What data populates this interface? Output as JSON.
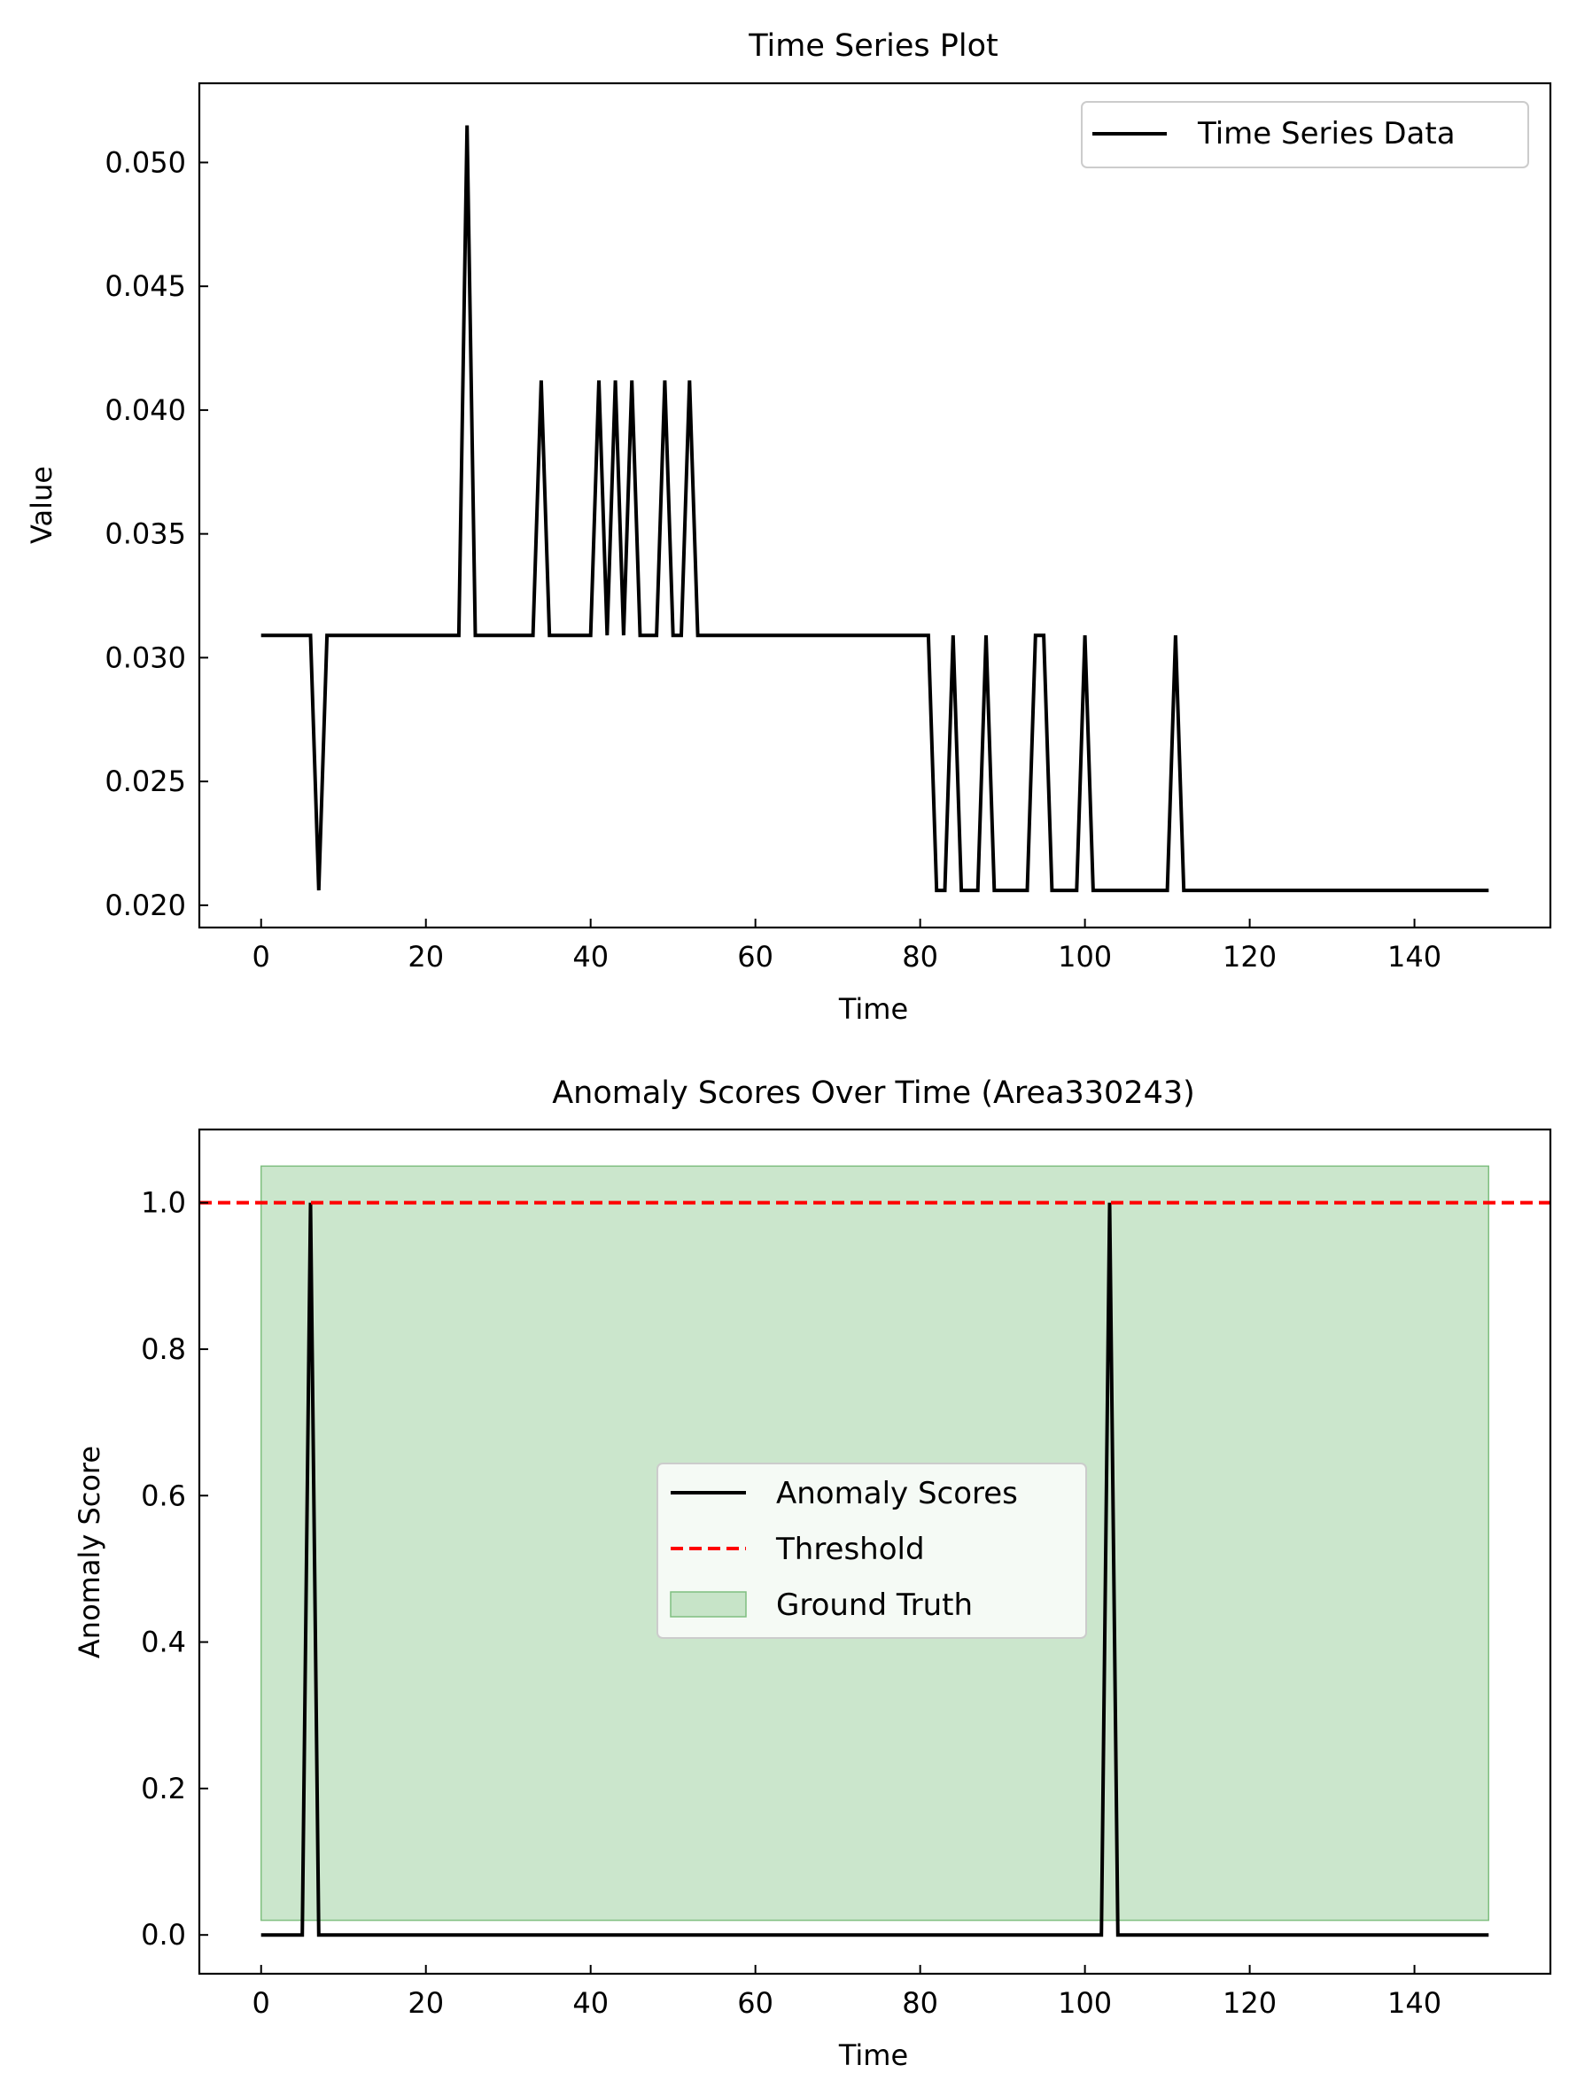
{
  "chart_data": [
    {
      "type": "line",
      "title": "Time Series Plot",
      "xlabel": "Time",
      "ylabel": "Value",
      "xlim": [
        -7.5,
        156.5
      ],
      "ylim": [
        0.0191,
        0.0532
      ],
      "xticks": [
        0,
        20,
        40,
        60,
        80,
        100,
        120,
        140
      ],
      "xtick_labels": [
        "0",
        "20",
        "40",
        "60",
        "80",
        "100",
        "120",
        "140"
      ],
      "yticks": [
        0.02,
        0.025,
        0.03,
        0.035,
        0.04,
        0.045,
        0.05
      ],
      "ytick_labels": [
        "0.020",
        "0.025",
        "0.030",
        "0.035",
        "0.040",
        "0.045",
        "0.050"
      ],
      "grid": false,
      "legend_position": "top-right",
      "series": [
        {
          "name": "Time Series Data",
          "color": "#000000",
          "x": [
            0,
            6,
            7,
            8,
            24,
            25,
            26,
            33,
            34,
            35,
            40,
            41,
            42,
            43,
            44,
            45,
            46,
            48,
            49,
            50,
            51,
            52,
            53,
            81,
            82,
            83,
            84,
            85,
            87,
            88,
            89,
            93,
            94,
            95,
            96,
            99,
            100,
            101,
            110,
            111,
            112,
            149
          ],
          "y": [
            0.0309,
            0.0309,
            0.0206,
            0.0309,
            0.0309,
            0.0515,
            0.0309,
            0.0309,
            0.0412,
            0.0309,
            0.0309,
            0.0412,
            0.0309,
            0.0412,
            0.0309,
            0.0412,
            0.0309,
            0.0309,
            0.0412,
            0.0309,
            0.0309,
            0.0412,
            0.0309,
            0.0309,
            0.0206,
            0.0206,
            0.0309,
            0.0206,
            0.0206,
            0.0309,
            0.0206,
            0.0206,
            0.0309,
            0.0309,
            0.0206,
            0.0206,
            0.0309,
            0.0206,
            0.0206,
            0.0309,
            0.0206,
            0.0206
          ]
        }
      ]
    },
    {
      "type": "line",
      "title": "Anomaly Scores Over Time (Area330243)",
      "xlabel": "Time",
      "ylabel": "Anomaly Score",
      "xlim": [
        -7.5,
        156.5
      ],
      "ylim": [
        -0.053,
        1.1
      ],
      "xticks": [
        0,
        20,
        40,
        60,
        80,
        100,
        120,
        140
      ],
      "xtick_labels": [
        "0",
        "20",
        "40",
        "60",
        "80",
        "100",
        "120",
        "140"
      ],
      "yticks": [
        0.0,
        0.2,
        0.4,
        0.6,
        0.8,
        1.0
      ],
      "ytick_labels": [
        "0.0",
        "0.2",
        "0.4",
        "0.6",
        "0.8",
        "1.0"
      ],
      "grid": false,
      "legend_position": "center",
      "series": [
        {
          "name": "Anomaly Scores",
          "color": "#000000",
          "style": "solid",
          "x": [
            0,
            5,
            6,
            7,
            102,
            103,
            104,
            149
          ],
          "y": [
            0,
            0,
            1,
            0,
            0,
            1,
            0,
            0
          ]
        },
        {
          "name": "Threshold",
          "color": "#ff0000",
          "style": "dashed",
          "y_constant": 1.0
        }
      ],
      "spans": [
        {
          "name": "Ground Truth",
          "color": "#a9d6aa",
          "x_range": [
            0,
            149
          ],
          "y_range": [
            0.02,
            1.05
          ]
        }
      ]
    }
  ]
}
